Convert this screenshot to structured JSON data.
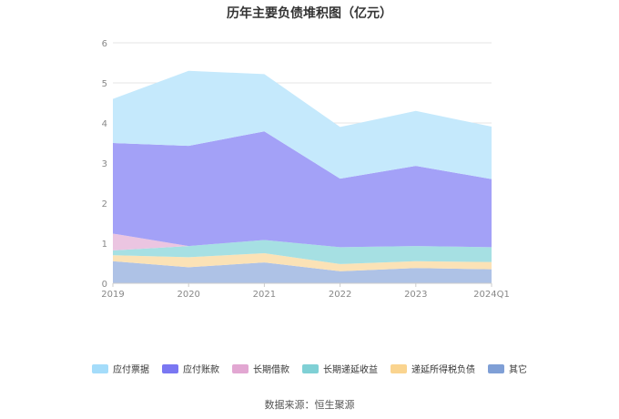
{
  "source": "数据来源：恒生聚源",
  "chart_data": {
    "type": "area",
    "stacked": true,
    "title": "历年主要负债堆积图（亿元）",
    "categories": [
      "2019",
      "2020",
      "2021",
      "2022",
      "2023",
      "2024Q1"
    ],
    "ylim": [
      0,
      6
    ],
    "yticks": [
      "0",
      "1",
      "2",
      "3",
      "4",
      "5",
      "6"
    ],
    "grid": true,
    "legend_position": "bottom",
    "series": [
      {
        "name": "其它",
        "color": "#aec2e6",
        "legend_color": "#7f9fd6",
        "values": [
          0.55,
          0.4,
          0.52,
          0.3,
          0.38,
          0.35
        ]
      },
      {
        "name": "递延所得税负债",
        "color": "#fbe2b6",
        "legend_color": "#fad48f",
        "values": [
          0.15,
          0.25,
          0.23,
          0.18,
          0.17,
          0.18
        ]
      },
      {
        "name": "长期递延收益",
        "color": "#a6e0e3",
        "legend_color": "#7fd0d5",
        "values": [
          0.12,
          0.28,
          0.33,
          0.42,
          0.38,
          0.37
        ]
      },
      {
        "name": "长期借款",
        "color": "#ebc5e1",
        "legend_color": "#e2a7d2",
        "values": [
          0.42,
          0.0,
          0.0,
          0.0,
          0.0,
          0.0
        ]
      },
      {
        "name": "应付账款",
        "color": "#a3a1f7",
        "legend_color": "#7a77f2",
        "values": [
          2.26,
          2.5,
          2.71,
          1.71,
          2.0,
          1.7
        ]
      },
      {
        "name": "应付票据",
        "color": "#c5e9fc",
        "legend_color": "#a4dcfa",
        "values": [
          1.1,
          1.87,
          1.43,
          1.29,
          1.37,
          1.31
        ]
      }
    ]
  }
}
